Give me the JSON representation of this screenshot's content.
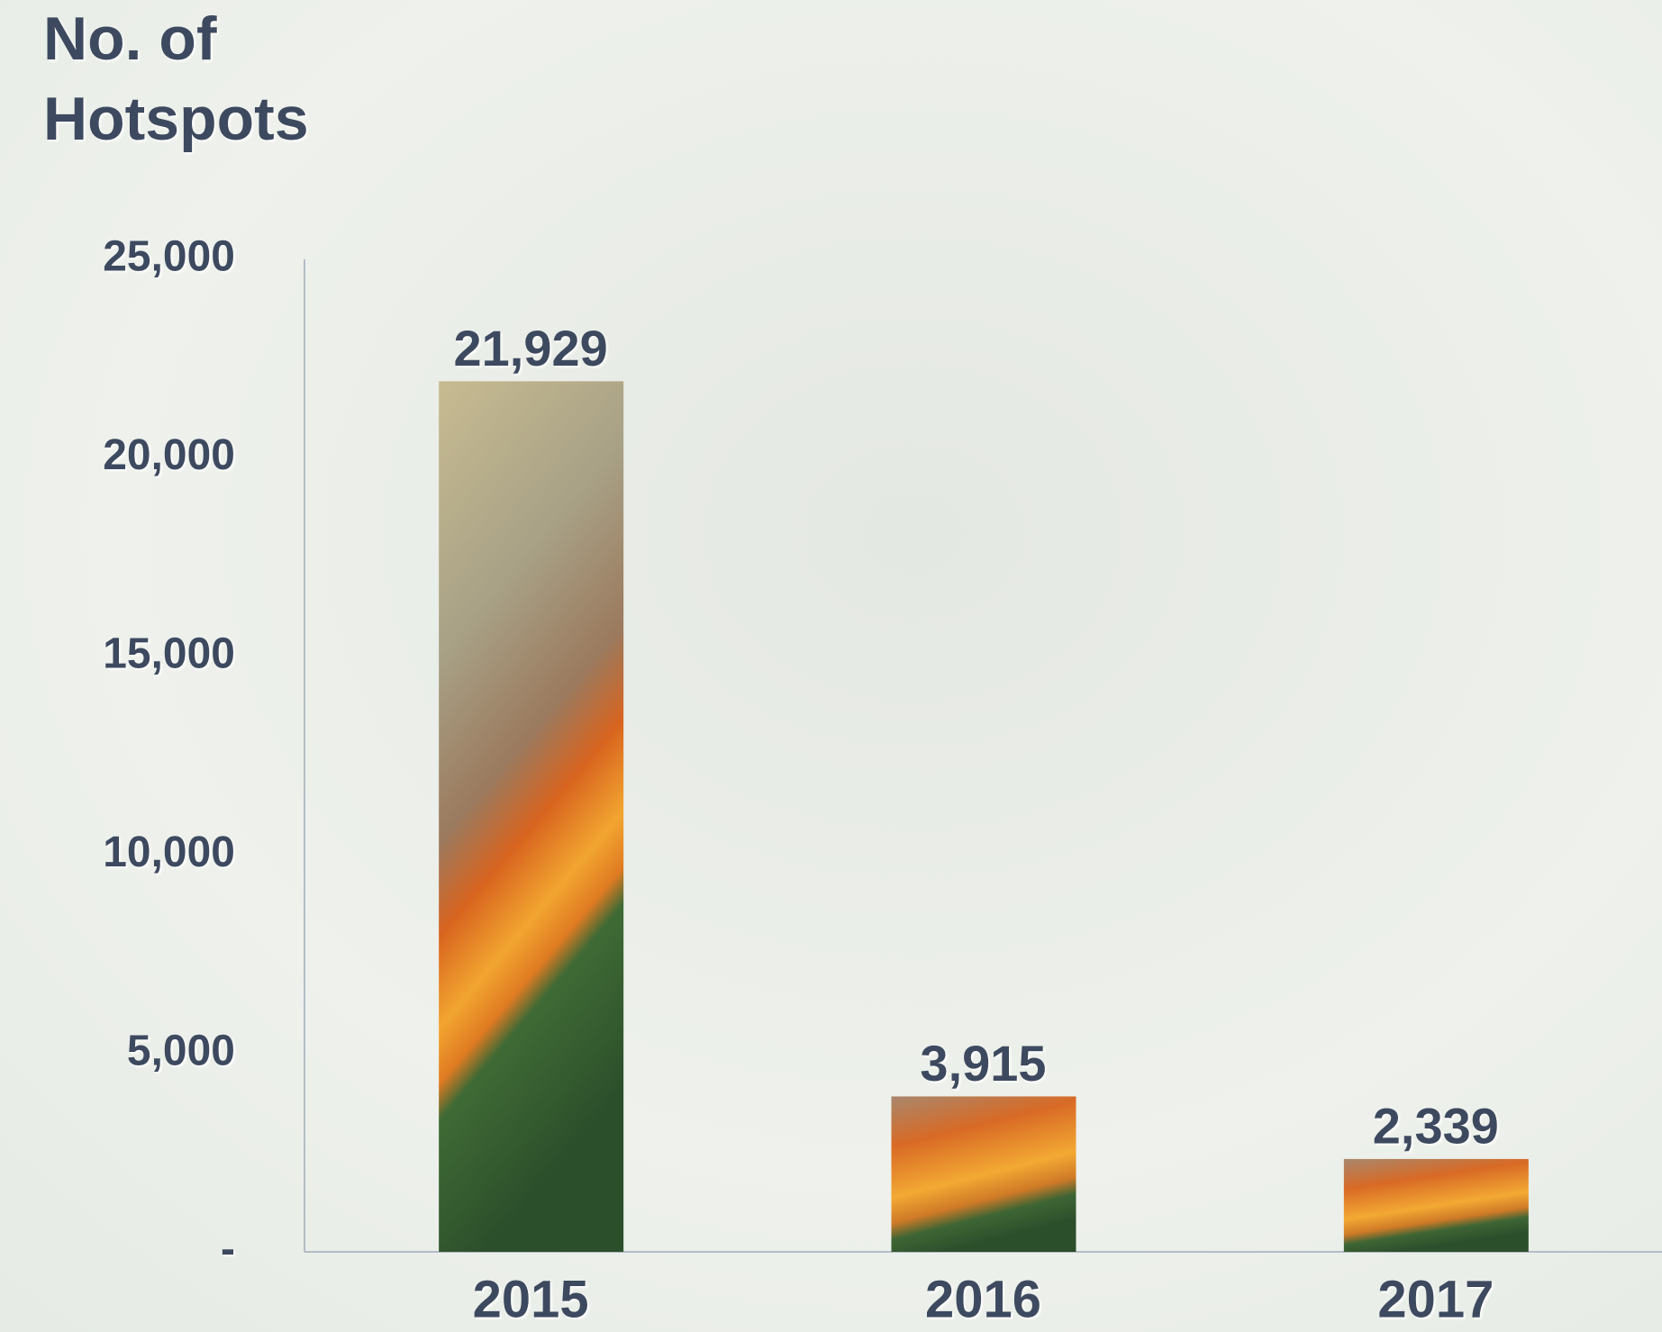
{
  "chart_data": {
    "type": "bar",
    "ylabel": [
      "No. of",
      "Hotspots"
    ],
    "categories": [
      "2015",
      "2016",
      "2017"
    ],
    "values": [
      21929,
      3915,
      2339
    ],
    "value_labels": [
      "21,929",
      "3,915",
      "2,339"
    ],
    "ylim": [
      0,
      25000
    ],
    "yticks": [
      {
        "value": 0,
        "label": "-"
      },
      {
        "value": 5000,
        "label": "5,000"
      },
      {
        "value": 10000,
        "label": "10,000"
      },
      {
        "value": 15000,
        "label": "15,000"
      },
      {
        "value": 20000,
        "label": "20,000"
      },
      {
        "value": 25000,
        "label": "25,000"
      }
    ],
    "grid": false
  }
}
